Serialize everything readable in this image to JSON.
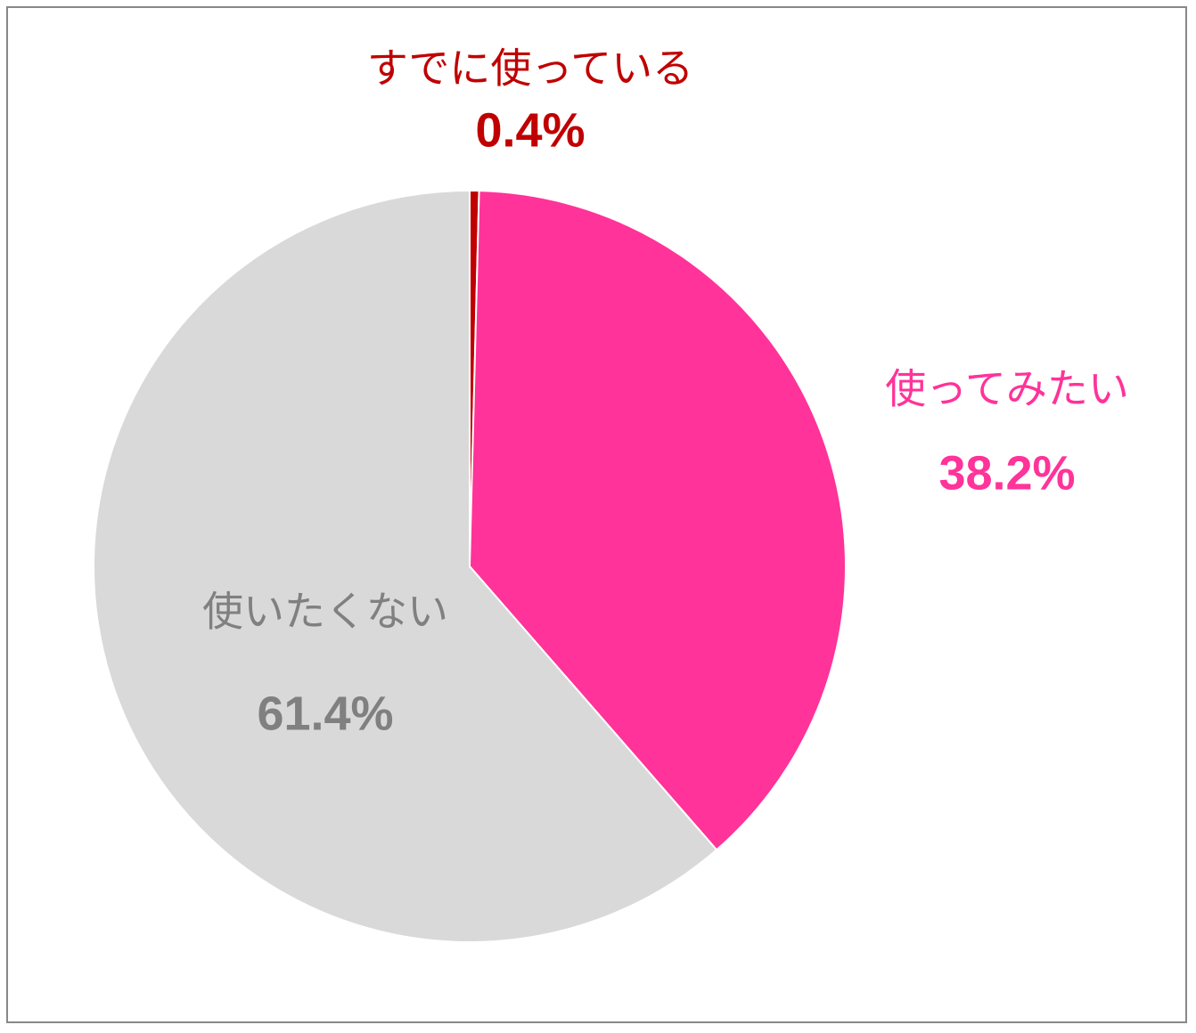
{
  "chart_data": {
    "type": "pie",
    "categories": [
      "すでに使っている",
      "使ってみたい",
      "使いたくない"
    ],
    "values": [
      0.4,
      38.2,
      61.4
    ],
    "value_labels": [
      "0.4%",
      "38.2%",
      "61.4%"
    ],
    "colors": [
      "#c00000",
      "#ff3399",
      "#d9d9d9"
    ],
    "label_colors": [
      "#c00000",
      "#ff3399",
      "#808080"
    ]
  }
}
